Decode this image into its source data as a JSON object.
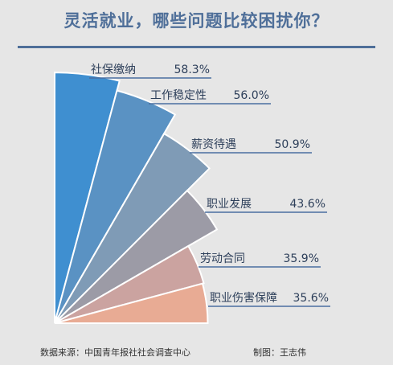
{
  "title": "灵活就业，哪些问题比较困扰你？",
  "footer": {
    "source": "数据来源：中国青年报社社会调查中心",
    "credit": "制图：王志伟"
  },
  "chart_data": {
    "type": "bar",
    "subtype": "radial-fan",
    "title": "灵活就业，哪些问题比较困扰你？",
    "unit": "%",
    "categories": [
      "社保缴纳",
      "工作稳定性",
      "薪资待遇",
      "职业发展",
      "劳动合同",
      "职业伤害保障"
    ],
    "values": [
      58.3,
      56.0,
      50.9,
      43.6,
      35.9,
      35.6
    ],
    "value_labels": [
      "58.3%",
      "56.0%",
      "50.9%",
      "43.6%",
      "35.9%",
      "35.6%"
    ],
    "colors": [
      "#3f8fd0",
      "#5a92c3",
      "#7f9bb6",
      "#9c9ba6",
      "#cba3a0",
      "#e8ab94"
    ]
  }
}
